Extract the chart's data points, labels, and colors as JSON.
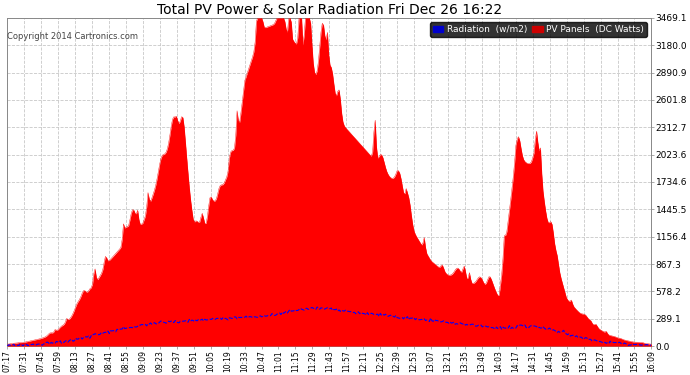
{
  "title": "Total PV Power & Solar Radiation Fri Dec 26 16:22",
  "copyright": "Copyright 2014 Cartronics.com",
  "legend_radiation": "Radiation  (w/m2)",
  "legend_pv": "PV Panels  (DC Watts)",
  "yticks": [
    0.0,
    289.1,
    578.2,
    867.3,
    1156.4,
    1445.5,
    1734.6,
    2023.6,
    2312.7,
    2601.8,
    2890.9,
    3180.0,
    3469.1
  ],
  "ymax": 3469.1,
  "bg_color": "#ffffff",
  "plot_bg_color": "#ffffff",
  "red_fill_color": "#ff0000",
  "blue_line_color": "#0000ff",
  "grid_color": "#c8c8c8",
  "title_color": "#000000",
  "xtick_labels": [
    "07:17",
    "07:31",
    "07:45",
    "07:59",
    "08:13",
    "08:27",
    "08:41",
    "08:55",
    "09:09",
    "09:23",
    "09:37",
    "09:51",
    "10:05",
    "10:19",
    "10:33",
    "10:47",
    "11:01",
    "11:15",
    "11:29",
    "11:43",
    "11:57",
    "12:11",
    "12:25",
    "12:39",
    "12:53",
    "13:07",
    "13:21",
    "13:35",
    "13:49",
    "14:03",
    "14:17",
    "14:31",
    "14:45",
    "14:59",
    "15:13",
    "15:27",
    "15:41",
    "15:55",
    "16:09"
  ]
}
